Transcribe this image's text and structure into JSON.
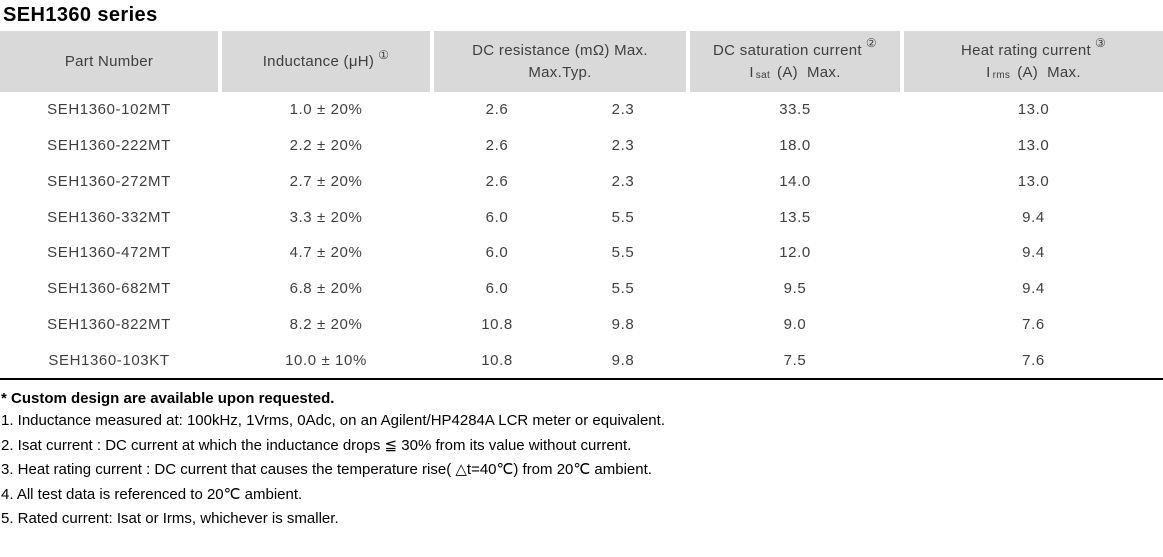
{
  "page": {
    "title": "SEH1360 series"
  },
  "colors": {
    "header_bg": "#d9d9d9",
    "table_text": "#3f3f3f",
    "notes_text": "#000000",
    "divider": "#000000"
  },
  "table": {
    "header": {
      "part_number": "Part Number",
      "inductance": {
        "label": "Inductance (μH)",
        "sup": "①"
      },
      "dc_resistance": {
        "label": "DC resistance (mΩ) Max.",
        "sub_max": "Max.",
        "sub_typ": "Typ."
      },
      "dc_saturation": {
        "label": "DC saturation current",
        "sup": "②",
        "symbol": "I",
        "subscript": "sat",
        "unit": "(A)",
        "max": "Max."
      },
      "heat_rating": {
        "label": "Heat rating current",
        "sup": "③",
        "symbol": "I",
        "subscript": "rms",
        "unit": "(A)",
        "max": "Max."
      }
    },
    "rows": [
      [
        "SEH1360-102MT",
        "1.0 ± 20%",
        "2.6",
        "2.3",
        "33.5",
        "13.0"
      ],
      [
        "SEH1360-222MT",
        "2.2 ± 20%",
        "2.6",
        "2.3",
        "18.0",
        "13.0"
      ],
      [
        "SEH1360-272MT",
        "2.7 ± 20%",
        "2.6",
        "2.3",
        "14.0",
        "13.0"
      ],
      [
        "SEH1360-332MT",
        "3.3 ± 20%",
        "6.0",
        "5.5",
        "13.5",
        "9.4"
      ],
      [
        "SEH1360-472MT",
        "4.7 ± 20%",
        "6.0",
        "5.5",
        "12.0",
        "9.4"
      ],
      [
        "SEH1360-682MT",
        "6.8 ± 20%",
        "6.0",
        "5.5",
        "9.5",
        "9.4"
      ],
      [
        "SEH1360-822MT",
        "8.2 ± 20%",
        "10.8",
        "9.8",
        "9.0",
        "7.6"
      ],
      [
        "SEH1360-103KT",
        "10.0 ± 10%",
        "10.8",
        "9.8",
        "7.5",
        "7.6"
      ]
    ]
  },
  "footnotes": {
    "custom": "* Custom design are available upon requested.",
    "items": [
      "1. Inductance measured at: 100kHz, 1Vrms, 0Adc, on an Agilent/HP4284A LCR meter or equivalent.",
      "2. Isat current : DC current at which the inductance drops ≦ 30% from its value without current.",
      "3. Heat rating current : DC current that causes the temperature rise( △t=40℃) from 20℃ ambient.",
      "4. All test data is referenced to 20℃ ambient.",
      "5. Rated current: Isat or Irms, whichever is smaller."
    ]
  }
}
